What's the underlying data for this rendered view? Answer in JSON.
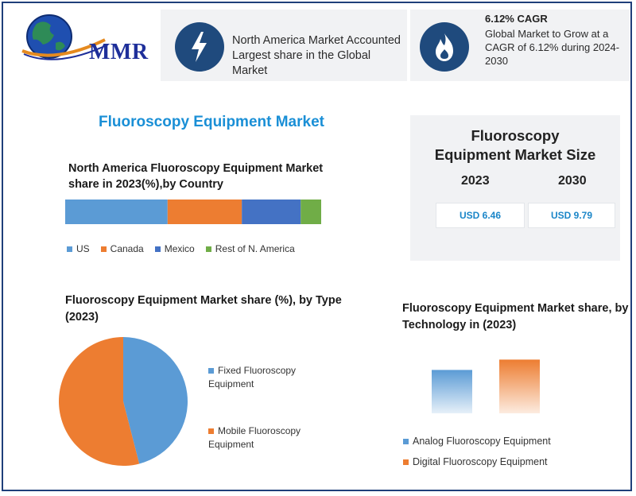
{
  "logo": {
    "text": "MMR"
  },
  "highlights": [
    {
      "icon": "lightning-icon",
      "text": "North America Market Accounted Largest share in the Global Market"
    },
    {
      "icon": "flame-icon",
      "title": "6.12% CAGR",
      "text": "Global Market to Grow at a CAGR of 6.12% during 2024-2030"
    }
  ],
  "main_title": "Fluoroscopy Equipment Market",
  "market_size": {
    "title": "Fluoroscopy Equipment Market Size",
    "years": [
      "2023",
      "2030"
    ],
    "values": [
      "USD 6.46",
      "USD 9.79"
    ]
  },
  "colors": {
    "blue": "#5b9bd5",
    "orange": "#ed7d31",
    "dark_blue": "#4472c4",
    "green": "#70ad47",
    "navy": "#1f4a7d",
    "title_blue": "#1a8fd6"
  },
  "chart_data": [
    {
      "type": "bar",
      "stacked": true,
      "orientation": "horizontal",
      "title": "North America Fluoroscopy Equipment Market share in 2023(%),by Country",
      "series": [
        {
          "name": "US",
          "values": [
            40
          ],
          "color": "#5b9bd5"
        },
        {
          "name": "Canada",
          "values": [
            29
          ],
          "color": "#ed7d31"
        },
        {
          "name": "Mexico",
          "values": [
            23
          ],
          "color": "#4472c4"
        },
        {
          "name": "Rest of N. America",
          "values": [
            8
          ],
          "color": "#70ad47"
        }
      ],
      "legend": "bottom"
    },
    {
      "type": "pie",
      "title": "Fluoroscopy Equipment Market share (%), by Type (2023)",
      "labels": [
        "Fixed Fluoroscopy Equipment",
        "Mobile Fluoroscopy Equipment"
      ],
      "values": [
        46,
        54
      ],
      "colors": [
        "#5b9bd5",
        "#ed7d31"
      ],
      "legend": "right"
    },
    {
      "type": "bar",
      "title": "Fluoroscopy Equipment Market share, by Technology in (2023)",
      "categories": [
        "Analog Fluoroscopy Equipment",
        "Digital Fluoroscopy Equipment"
      ],
      "values": [
        42,
        52
      ],
      "colors": [
        "#5b9bd5",
        "#ed7d31"
      ],
      "legend": "bottom"
    }
  ]
}
